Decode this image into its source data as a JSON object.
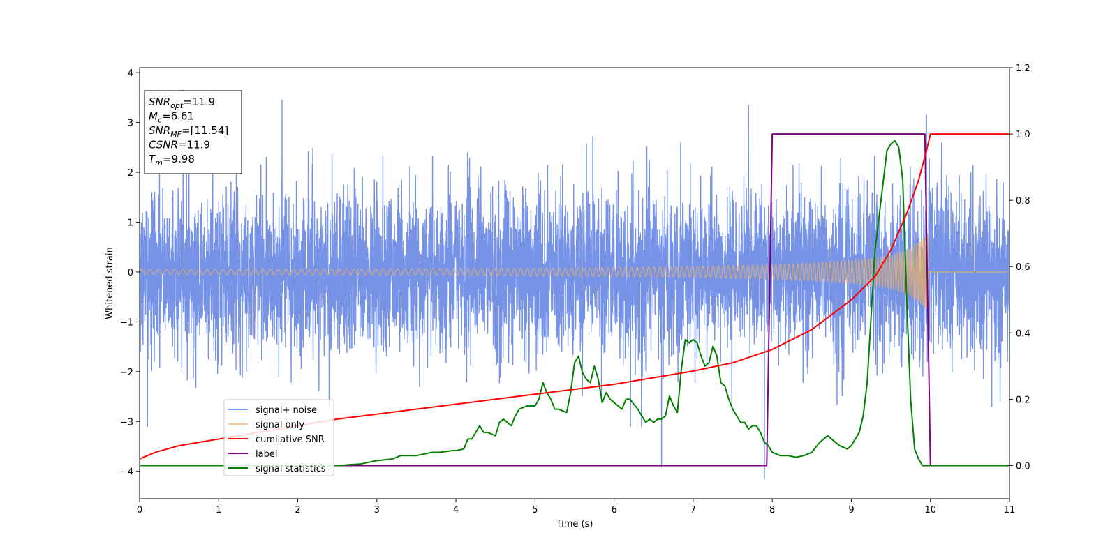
{
  "chart_data": {
    "type": "line",
    "xlabel": "Time (s)",
    "ylabel": "Whitened strain",
    "xlim": [
      0,
      11
    ],
    "ylim_left": [
      -4.55,
      4.1
    ],
    "ylim_right": [
      -0.1,
      1.2
    ],
    "x_ticks": [
      "0",
      "1",
      "2",
      "3",
      "4",
      "5",
      "6",
      "7",
      "8",
      "9",
      "10",
      "11"
    ],
    "y_left_ticks": [
      "4",
      "3",
      "2",
      "1",
      "0",
      "−1",
      "−2",
      "−3",
      "−4"
    ],
    "y_right_ticks": [
      "1.2",
      "1.0",
      "0.8",
      "0.6",
      "0.4",
      "0.2",
      "0.0"
    ],
    "grid": false,
    "legend_position": "lower-left",
    "info_box": [
      {
        "sym": "SNR",
        "sub": "opt",
        "val": "=11.9"
      },
      {
        "sym": "M",
        "sub": "c",
        "val": "=6.61"
      },
      {
        "sym": "SNR",
        "sub": "MF",
        "val": "=[11.54]"
      },
      {
        "sym": "CSNR",
        "sub": "",
        "val": "=11.9"
      },
      {
        "sym": "T",
        "sub": "m",
        "val": "=9.98"
      }
    ],
    "series": [
      {
        "name": "signal+ noise",
        "color": "#6a8ae6",
        "axis": "left",
        "kind": "noise",
        "amplitude_typical": 1.6,
        "x_range": [
          0,
          11
        ],
        "peaks": [
          [
            0.55,
            3.65
          ],
          [
            1.8,
            3.45
          ],
          [
            7.7,
            3.35
          ],
          [
            9.95,
            3.15
          ],
          [
            7.9,
            -4.15
          ],
          [
            6.6,
            -3.9
          ],
          [
            0.1,
            -3.1
          ]
        ]
      },
      {
        "name": "signal only",
        "color": "#e8b06a",
        "axis": "left",
        "kind": "chirp",
        "envelope": {
          "x": [
            0,
            2,
            4,
            6,
            7,
            8,
            8.5,
            9,
            9.3,
            9.5,
            9.7,
            9.85,
            9.97
          ],
          "amp": [
            0.05,
            0.06,
            0.07,
            0.09,
            0.11,
            0.15,
            0.18,
            0.23,
            0.28,
            0.34,
            0.44,
            0.6,
            0.78
          ]
        },
        "after_merger": {
          "x": [
            9.97,
            11
          ],
          "y": [
            0,
            0
          ]
        }
      },
      {
        "name": "cumilative SNR",
        "color": "#ff0000",
        "axis": "right",
        "x": [
          0,
          0.2,
          0.5,
          1,
          1.5,
          2,
          2.5,
          3,
          3.5,
          4,
          4.5,
          5,
          5.5,
          6,
          6.5,
          7,
          7.5,
          8,
          8.5,
          9,
          9.3,
          9.5,
          9.7,
          9.85,
          9.95,
          10,
          11
        ],
        "y": [
          0.02,
          0.04,
          0.06,
          0.08,
          0.1,
          0.12,
          0.14,
          0.155,
          0.17,
          0.185,
          0.2,
          0.215,
          0.23,
          0.245,
          0.265,
          0.285,
          0.31,
          0.35,
          0.41,
          0.5,
          0.57,
          0.65,
          0.76,
          0.86,
          0.95,
          1.0,
          1.0
        ]
      },
      {
        "name": "label",
        "color": "#800080",
        "axis": "right",
        "x": [
          0,
          7.93,
          8.0,
          9.93,
          10.0,
          11
        ],
        "y": [
          0,
          0,
          1,
          1,
          0,
          0
        ]
      },
      {
        "name": "signal statistics",
        "color": "#008000",
        "axis": "right",
        "x": [
          0,
          2.5,
          2.8,
          3.0,
          3.2,
          3.3,
          3.5,
          3.6,
          3.7,
          3.8,
          3.95,
          4.0,
          4.1,
          4.15,
          4.2,
          4.3,
          4.35,
          4.4,
          4.5,
          4.55,
          4.6,
          4.7,
          4.75,
          4.8,
          4.9,
          5.0,
          5.05,
          5.1,
          5.15,
          5.2,
          5.25,
          5.3,
          5.4,
          5.45,
          5.5,
          5.55,
          5.6,
          5.65,
          5.7,
          5.75,
          5.8,
          5.85,
          5.9,
          5.95,
          6.0,
          6.1,
          6.15,
          6.2,
          6.3,
          6.35,
          6.4,
          6.45,
          6.5,
          6.55,
          6.6,
          6.65,
          6.7,
          6.75,
          6.8,
          6.85,
          6.9,
          6.95,
          7.0,
          7.05,
          7.1,
          7.15,
          7.2,
          7.25,
          7.3,
          7.35,
          7.4,
          7.45,
          7.5,
          7.55,
          7.6,
          7.65,
          7.7,
          7.75,
          7.8,
          7.85,
          7.9,
          7.95,
          8.0,
          8.1,
          8.2,
          8.3,
          8.4,
          8.5,
          8.6,
          8.7,
          8.75,
          8.8,
          8.85,
          8.9,
          8.95,
          9.0,
          9.05,
          9.1,
          9.15,
          9.2,
          9.25,
          9.3,
          9.4,
          9.45,
          9.5,
          9.55,
          9.6,
          9.65,
          9.7,
          9.75,
          9.8,
          9.85,
          9.9,
          9.95,
          10.0,
          10.05,
          10.1,
          10.2,
          11.0
        ],
        "y": [
          0.0,
          0.0,
          0.005,
          0.015,
          0.02,
          0.03,
          0.03,
          0.035,
          0.04,
          0.04,
          0.045,
          0.045,
          0.05,
          0.08,
          0.08,
          0.12,
          0.1,
          0.1,
          0.09,
          0.13,
          0.14,
          0.12,
          0.15,
          0.17,
          0.18,
          0.18,
          0.2,
          0.25,
          0.22,
          0.2,
          0.17,
          0.17,
          0.16,
          0.22,
          0.31,
          0.33,
          0.28,
          0.26,
          0.25,
          0.3,
          0.26,
          0.19,
          0.22,
          0.2,
          0.19,
          0.17,
          0.2,
          0.2,
          0.17,
          0.15,
          0.13,
          0.14,
          0.13,
          0.14,
          0.14,
          0.15,
          0.21,
          0.18,
          0.16,
          0.29,
          0.38,
          0.37,
          0.38,
          0.37,
          0.33,
          0.3,
          0.31,
          0.36,
          0.33,
          0.25,
          0.24,
          0.2,
          0.17,
          0.15,
          0.13,
          0.13,
          0.11,
          0.12,
          0.12,
          0.1,
          0.07,
          0.06,
          0.04,
          0.03,
          0.03,
          0.025,
          0.03,
          0.04,
          0.07,
          0.09,
          0.08,
          0.07,
          0.06,
          0.055,
          0.05,
          0.06,
          0.08,
          0.1,
          0.15,
          0.25,
          0.45,
          0.65,
          0.85,
          0.95,
          0.97,
          0.98,
          0.96,
          0.86,
          0.5,
          0.2,
          0.05,
          0.02,
          0.0,
          0.0,
          0.0,
          0.0,
          0.0,
          0.0,
          0.0
        ]
      }
    ]
  }
}
